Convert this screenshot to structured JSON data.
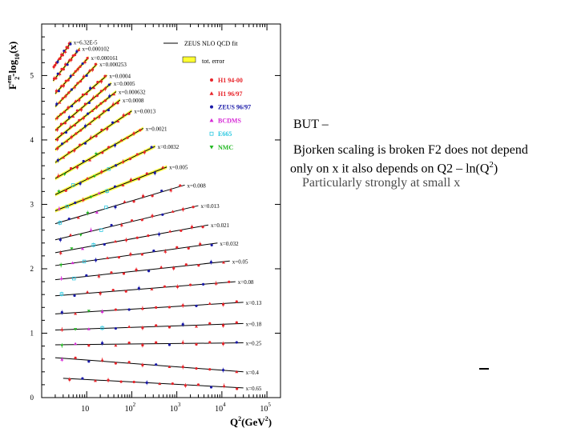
{
  "slide": {
    "heading": "BUT –",
    "text_line1": "Bjorken scaling is broken F2 does not depend",
    "text_line2_a": "only on x it also depends on Q2 – ln(Q",
    "text_line2_sup": "2",
    "text_line2_b": ")",
    "text_line3": "Particularly strongly at small x"
  },
  "chart_data": {
    "type": "scatter",
    "ylabel_main": "F",
    "ylabel_sup": "em",
    "ylabel_sub": "2",
    "ylabel_rest": "-log",
    "ylabel_sub2": "10",
    "ylabel_end": "(x)",
    "xlabel_main": "Q",
    "xlabel_sup": "2",
    "xlabel_unit": "(GeV",
    "xlabel_unit_sup": "2",
    "xlabel_end": ")",
    "x_scale": "log",
    "xlim": [
      1,
      200000
    ],
    "ylim": [
      0,
      5.8
    ],
    "y_ticks": [
      0,
      1,
      2,
      3,
      4,
      5
    ],
    "x_ticks": [
      {
        "value": 10,
        "base": "10",
        "exp": ""
      },
      {
        "value": 100,
        "base": "10",
        "exp": "2"
      },
      {
        "value": 1000,
        "base": "10",
        "exp": "3"
      },
      {
        "value": 10000,
        "base": "10",
        "exp": "4"
      },
      {
        "value": 100000,
        "base": "10",
        "exp": "5"
      }
    ],
    "legend": [
      {
        "label": "ZEUS NLO QCD fit",
        "kind": "line",
        "color": "#000000"
      },
      {
        "label": "tot. error",
        "kind": "band",
        "color": "#ffff33"
      },
      {
        "label": "H1 94-00",
        "kind": "marker",
        "marker": "circle",
        "color": "#e8242a"
      },
      {
        "label": "H1 96/97",
        "kind": "marker",
        "marker": "triangle",
        "color": "#e8242a"
      },
      {
        "label": "ZEUS 96/97",
        "kind": "marker",
        "marker": "circle",
        "color": "#1a1aa8"
      },
      {
        "label": "BCDMS",
        "kind": "marker",
        "marker": "triangle",
        "color": "#d62ad6"
      },
      {
        "label": "E665",
        "kind": "marker",
        "marker": "square",
        "color": "#2ac8e0"
      },
      {
        "label": "NMC",
        "kind": "marker",
        "marker": "triangle-down",
        "color": "#22b822"
      }
    ],
    "bins": [
      {
        "label": "x=6.32E-5",
        "q2": [
          1.8,
          4.5
        ],
        "f2": [
          5.12,
          5.52
        ]
      },
      {
        "label": "x=0.000102",
        "q2": [
          1.8,
          7
        ],
        "f2": [
          4.92,
          5.42
        ]
      },
      {
        "label": "x=0.000161",
        "q2": [
          2,
          11
        ],
        "f2": [
          4.72,
          5.28
        ]
      },
      {
        "label": "x=0.000253",
        "q2": [
          2,
          17
        ],
        "f2": [
          4.52,
          5.18
        ]
      },
      {
        "label": "x=0.0004",
        "q2": [
          2,
          28
        ],
        "f2": [
          4.32,
          5.0
        ]
      },
      {
        "label": "x=0.0005",
        "q2": [
          2,
          35
        ],
        "f2": [
          4.15,
          4.88
        ]
      },
      {
        "label": "x=0.000632",
        "q2": [
          2,
          45
        ],
        "f2": [
          4.0,
          4.75
        ]
      },
      {
        "label": "x=0.0008",
        "q2": [
          2,
          55
        ],
        "f2": [
          3.85,
          4.62
        ]
      },
      {
        "label": "x=0.0013",
        "q2": [
          2,
          100
        ],
        "f2": [
          3.65,
          4.45
        ]
      },
      {
        "label": "x=0.0021",
        "q2": [
          2,
          180
        ],
        "f2": [
          3.4,
          4.18
        ]
      },
      {
        "label": "x=0.0032",
        "q2": [
          2,
          330
        ],
        "f2": [
          3.15,
          3.9
        ]
      },
      {
        "label": "x=0.005",
        "q2": [
          2,
          600
        ],
        "f2": [
          2.9,
          3.58
        ]
      },
      {
        "label": "x=0.008",
        "q2": [
          2,
          1500
        ],
        "f2": [
          2.7,
          3.3
        ]
      },
      {
        "label": "x=0.013",
        "q2": [
          2,
          3000
        ],
        "f2": [
          2.45,
          2.98
        ]
      },
      {
        "label": "x=0.021",
        "q2": [
          2,
          5000
        ],
        "f2": [
          2.25,
          2.68
        ]
      },
      {
        "label": "x=0.032",
        "q2": [
          2,
          8000
        ],
        "f2": [
          2.05,
          2.4
        ]
      },
      {
        "label": "x=0.05",
        "q2": [
          2,
          15000
        ],
        "f2": [
          1.83,
          2.12
        ]
      },
      {
        "label": "x=0.08",
        "q2": [
          2,
          20000
        ],
        "f2": [
          1.58,
          1.8
        ]
      },
      {
        "label": "x=0.13",
        "q2": [
          2,
          30000
        ],
        "f2": [
          1.3,
          1.48
        ]
      },
      {
        "label": "x=0.18",
        "q2": [
          2,
          30000
        ],
        "f2": [
          1.05,
          1.15
        ]
      },
      {
        "label": "x=0.25",
        "q2": [
          2,
          30000
        ],
        "f2": [
          0.82,
          0.85
        ]
      },
      {
        "label": "x=0.4",
        "q2": [
          2,
          30000
        ],
        "f2": [
          0.62,
          0.4
        ]
      },
      {
        "label": "x=0.65",
        "q2": [
          3,
          30000
        ],
        "f2": [
          0.3,
          0.15
        ]
      }
    ]
  }
}
